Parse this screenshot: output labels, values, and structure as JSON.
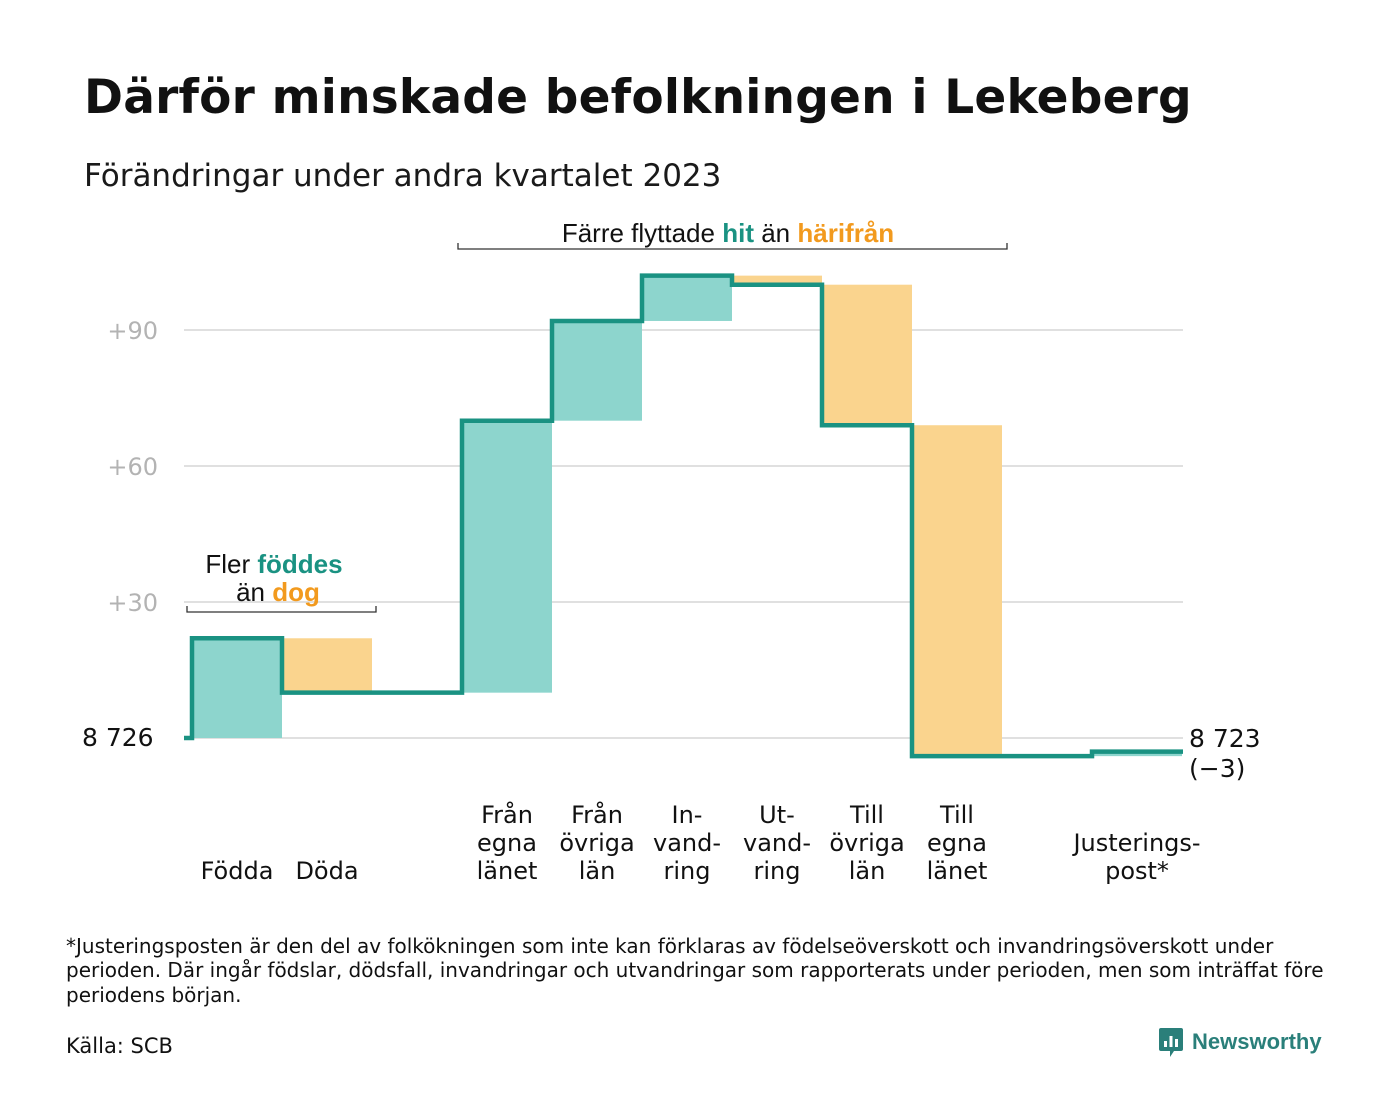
{
  "title": "Därför minskade befolkningen i Lekeberg",
  "subtitle": "Förändringar under andra kvartalet 2023",
  "colors": {
    "increase": "#8dd5cd",
    "decrease": "#fad48e",
    "line": "#1a9282",
    "teal_text": "#1a9282",
    "orange_text": "#f29a1e",
    "grid": "#e0e0e0",
    "tick": "#b3b3b3"
  },
  "annotations": {
    "births": {
      "line1_plain": "Fler ",
      "line1_teal": "föddes",
      "line2_plain": "än ",
      "line2_orange": "dog"
    },
    "migration": {
      "plain1": "Färre flyttade ",
      "teal": "hit",
      "plain2": " än ",
      "orange": "härifrån"
    }
  },
  "start_label": "8  726",
  "end_label_value": "8 723",
  "end_label_change": "(−3)",
  "chart_data": {
    "type": "waterfall",
    "start_value": 8726,
    "end_value": 8723,
    "baseline": 8726,
    "y_ticks": [
      {
        "value": 90,
        "label": "+90"
      },
      {
        "value": 60,
        "label": "+60"
      },
      {
        "value": 30,
        "label": "+30"
      }
    ],
    "ylim": [
      -5,
      100
    ],
    "grid": true,
    "steps": [
      {
        "label_lines": [
          "Födda"
        ],
        "change": 22
      },
      {
        "label_lines": [
          "Döda"
        ],
        "change": -12
      },
      {
        "label_lines": [],
        "change": 0
      },
      {
        "label_lines": [
          "Från",
          "egna",
          "länet"
        ],
        "change": 60
      },
      {
        "label_lines": [
          "Från",
          "övriga",
          "län"
        ],
        "change": 22
      },
      {
        "label_lines": [
          "In-",
          "vand-",
          "ring"
        ],
        "change": 10
      },
      {
        "label_lines": [
          "Ut-",
          "vand-",
          "ring"
        ],
        "change": -2
      },
      {
        "label_lines": [
          "Till",
          "övriga",
          "län"
        ],
        "change": -31
      },
      {
        "label_lines": [
          "Till",
          "egna",
          "länet"
        ],
        "change": -73
      },
      {
        "label_lines": [],
        "change": 0
      },
      {
        "label_lines": [
          "Justerings-",
          "post*"
        ],
        "change": 1
      }
    ]
  },
  "footnote": "*Justeringsposten är den del av folkökningen som inte kan förklaras av födelseöverskott och invandringsöverskott under perioden. Där ingår födslar, dödsfall, invandringar och utvandringar som rapporterats under perioden, men som inträffat före periodens början.",
  "source": "Källa: SCB",
  "brand": {
    "name": "Newsworthy",
    "icon": "newsworthy-logo-icon"
  }
}
